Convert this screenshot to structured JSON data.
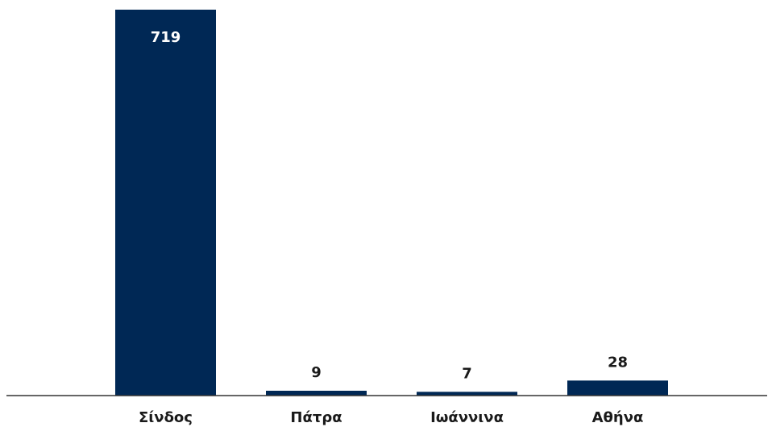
{
  "chart_data": {
    "type": "bar",
    "categories": [
      "Σίνδος",
      "Πάτρα",
      "Ιωάννινα",
      "Αθήνα"
    ],
    "values": [
      719,
      9,
      7,
      28
    ],
    "title": "",
    "xlabel": "",
    "ylabel": "",
    "ylim": [
      0,
      719
    ],
    "grid": false,
    "legend": "none",
    "bar_color": "#002855",
    "label_color_inside": "#ffffff",
    "label_color_outside": "#1a1a1a",
    "axis_color": "#333333"
  }
}
